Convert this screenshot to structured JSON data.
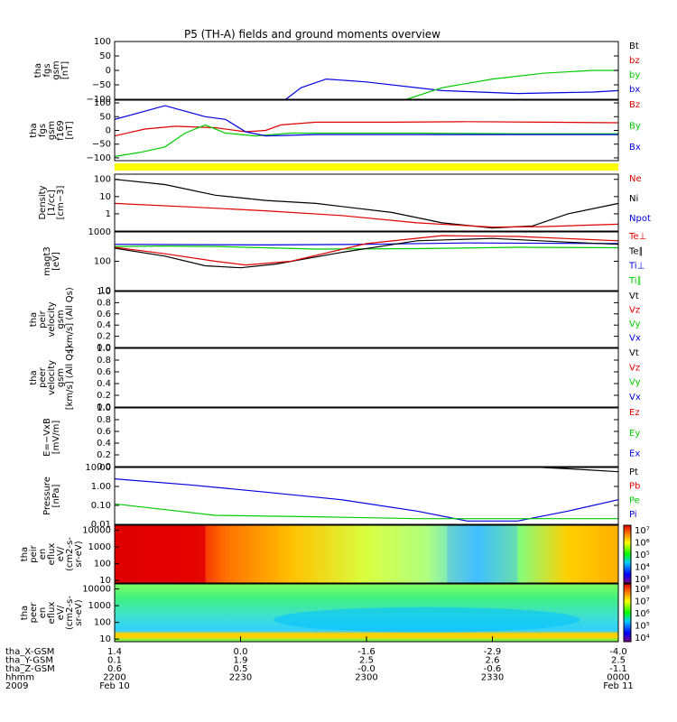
{
  "title": "P5 (TH-A) fields and ground moments overview",
  "colors": {
    "black": "#000000",
    "red": "#e00000",
    "green": "#00cc00",
    "blue": "#0000e0",
    "yellow": "#ffff00"
  },
  "chart_data": [
    {
      "type": "line",
      "id": "fgs",
      "ylabel": [
        "tha",
        "fgs",
        "gsm",
        "[nT]"
      ],
      "ylim": [
        -100,
        100
      ],
      "yticks": [
        "100",
        "50",
        "0",
        "−50",
        "−100"
      ],
      "legend": [
        {
          "name": "Bt",
          "color": "black"
        },
        {
          "name": "bz",
          "color": "red"
        },
        {
          "name": "by",
          "color": "green"
        },
        {
          "name": "bx",
          "color": "blue"
        }
      ],
      "series": [
        {
          "color": "blue",
          "points": [
            [
              0.34,
              -100
            ],
            [
              0.37,
              -60
            ],
            [
              0.42,
              -30
            ],
            [
              0.5,
              -40
            ],
            [
              0.65,
              -70
            ],
            [
              0.8,
              -80
            ],
            [
              0.95,
              -75
            ],
            [
              1.0,
              -70
            ]
          ]
        },
        {
          "color": "green",
          "points": [
            [
              0.58,
              -100
            ],
            [
              0.65,
              -60
            ],
            [
              0.75,
              -30
            ],
            [
              0.85,
              -10
            ],
            [
              0.95,
              0
            ],
            [
              1.0,
              0
            ]
          ]
        }
      ]
    },
    {
      "type": "line",
      "id": "fgs-f169",
      "ylabel": [
        "tha",
        "fgs",
        "gsm",
        "f169",
        "[nT]"
      ],
      "ylim": [
        -110,
        110
      ],
      "yticks": [
        "100",
        "50",
        "0",
        "−50",
        "−100"
      ],
      "legend": [
        {
          "name": "Bz",
          "color": "red"
        },
        {
          "name": "By",
          "color": "green"
        },
        {
          "name": "Bx",
          "color": "blue"
        }
      ],
      "series": [
        {
          "color": "red",
          "points": [
            [
              0.0,
              -20
            ],
            [
              0.06,
              5
            ],
            [
              0.12,
              15
            ],
            [
              0.2,
              10
            ],
            [
              0.26,
              -5
            ],
            [
              0.3,
              0
            ],
            [
              0.33,
              20
            ],
            [
              0.4,
              30
            ],
            [
              0.55,
              30
            ],
            [
              0.7,
              32
            ],
            [
              0.85,
              30
            ],
            [
              1.0,
              28
            ]
          ]
        },
        {
          "color": "green",
          "points": [
            [
              0.0,
              -95
            ],
            [
              0.05,
              -80
            ],
            [
              0.1,
              -60
            ],
            [
              0.14,
              -10
            ],
            [
              0.18,
              20
            ],
            [
              0.22,
              -10
            ],
            [
              0.28,
              -20
            ],
            [
              0.35,
              -10
            ],
            [
              0.45,
              -10
            ],
            [
              0.6,
              -10
            ],
            [
              0.8,
              -12
            ],
            [
              1.0,
              -12
            ]
          ]
        },
        {
          "color": "blue",
          "points": [
            [
              0.0,
              40
            ],
            [
              0.06,
              70
            ],
            [
              0.1,
              90
            ],
            [
              0.14,
              70
            ],
            [
              0.18,
              50
            ],
            [
              0.22,
              40
            ],
            [
              0.26,
              -5
            ],
            [
              0.3,
              -20
            ],
            [
              0.4,
              -15
            ],
            [
              0.6,
              -15
            ],
            [
              0.8,
              -15
            ],
            [
              1.0,
              -15
            ]
          ]
        }
      ]
    },
    {
      "type": "line",
      "id": "density",
      "ylabel": [
        "Density",
        "[1/cc]",
        "[cm−3]"
      ],
      "ylog": true,
      "ylim": [
        0.1,
        200
      ],
      "yticks": [
        "100",
        "10",
        "1"
      ],
      "legend": [
        {
          "name": "Ne",
          "color": "red"
        },
        {
          "name": "Ni",
          "color": "black"
        },
        {
          "name": "Npot",
          "color": "blue"
        }
      ],
      "series": [
        {
          "color": "black",
          "points": [
            [
              0.0,
              100
            ],
            [
              0.1,
              50
            ],
            [
              0.2,
              12
            ],
            [
              0.3,
              6
            ],
            [
              0.4,
              4
            ],
            [
              0.55,
              1.2
            ],
            [
              0.65,
              0.3
            ],
            [
              0.75,
              0.15
            ],
            [
              0.83,
              0.2
            ],
            [
              0.9,
              1.0
            ],
            [
              1.0,
              4
            ]
          ]
        },
        {
          "color": "red",
          "points": [
            [
              0.0,
              4
            ],
            [
              0.15,
              2.5
            ],
            [
              0.3,
              1.5
            ],
            [
              0.45,
              0.8
            ],
            [
              0.6,
              0.3
            ],
            [
              0.75,
              0.17
            ],
            [
              0.85,
              0.18
            ],
            [
              1.0,
              0.25
            ]
          ]
        }
      ]
    },
    {
      "type": "line",
      "id": "magt3",
      "ylabel": [
        "magt3",
        "[eV]"
      ],
      "ylog": true,
      "ylim": [
        10,
        1000
      ],
      "yticks": [
        "1000",
        "100",
        "10"
      ],
      "legend": [
        {
          "name": "Te⊥",
          "color": "red"
        },
        {
          "name": "Te∥",
          "color": "black"
        },
        {
          "name": "Ti⊥",
          "color": "blue"
        },
        {
          "name": "Ti∥",
          "color": "green"
        }
      ],
      "series": [
        {
          "color": "blue",
          "points": [
            [
              0.0,
              380
            ],
            [
              0.3,
              360
            ],
            [
              0.5,
              380
            ],
            [
              0.7,
              420
            ],
            [
              1.0,
              400
            ]
          ]
        },
        {
          "color": "green",
          "points": [
            [
              0.0,
              320
            ],
            [
              0.1,
              330
            ],
            [
              0.2,
              320
            ],
            [
              0.4,
              260
            ],
            [
              0.6,
              270
            ],
            [
              0.8,
              300
            ],
            [
              1.0,
              290
            ]
          ]
        },
        {
          "color": "black",
          "points": [
            [
              0.0,
              280
            ],
            [
              0.1,
              150
            ],
            [
              0.18,
              70
            ],
            [
              0.25,
              60
            ],
            [
              0.32,
              80
            ],
            [
              0.45,
              200
            ],
            [
              0.6,
              500
            ],
            [
              0.75,
              600
            ],
            [
              0.9,
              450
            ],
            [
              1.0,
              380
            ]
          ]
        },
        {
          "color": "red",
          "points": [
            [
              0.0,
              300
            ],
            [
              0.1,
              180
            ],
            [
              0.2,
              100
            ],
            [
              0.26,
              75
            ],
            [
              0.35,
              100
            ],
            [
              0.5,
              400
            ],
            [
              0.65,
              750
            ],
            [
              0.8,
              700
            ],
            [
              1.0,
              500
            ]
          ]
        }
      ]
    },
    {
      "type": "line",
      "id": "peir",
      "ylabel": [
        "tha",
        "peir",
        "velocity",
        "gsm",
        "[km/s] (All Qs)"
      ],
      "ylim": [
        0,
        1
      ],
      "yticks": [
        "1.0",
        "0.8",
        "0.6",
        "0.4",
        "0.2",
        "0.0"
      ],
      "legend": [
        {
          "name": "Vt",
          "color": "black"
        },
        {
          "name": "Vz",
          "color": "red"
        },
        {
          "name": "Vy",
          "color": "green"
        },
        {
          "name": "Vx",
          "color": "blue"
        }
      ],
      "series": []
    },
    {
      "type": "line",
      "id": "peer",
      "ylabel": [
        "tha",
        "peer",
        "velocity",
        "gsm",
        "[km/s] (All Qs)"
      ],
      "ylim": [
        0,
        1
      ],
      "yticks": [
        "1.0",
        "0.8",
        "0.6",
        "0.4",
        "0.2",
        "0.0"
      ],
      "legend": [
        {
          "name": "Vt",
          "color": "black"
        },
        {
          "name": "Vz",
          "color": "red"
        },
        {
          "name": "Vy",
          "color": "green"
        },
        {
          "name": "Vx",
          "color": "blue"
        }
      ],
      "series": []
    },
    {
      "type": "line",
      "id": "efield",
      "ylabel": [
        "E=−VxB",
        "[mV/m]"
      ],
      "ylim": [
        0,
        1
      ],
      "yticks": [
        "1.0",
        "0.8",
        "0.6",
        "0.4",
        "0.2",
        "0.0"
      ],
      "legend": [
        {
          "name": "Ez",
          "color": "red"
        },
        {
          "name": "Ey",
          "color": "green"
        },
        {
          "name": "Ex",
          "color": "blue"
        }
      ],
      "series": []
    },
    {
      "type": "line",
      "id": "pressure",
      "ylabel": [
        "Pressure",
        "[nPa]"
      ],
      "ylog": true,
      "ylim": [
        0.01,
        10
      ],
      "yticks": [
        "10.00",
        "1.00",
        "0.10",
        "0.01"
      ],
      "legend": [
        {
          "name": "Pt",
          "color": "black"
        },
        {
          "name": "Pb",
          "color": "red"
        },
        {
          "name": "Pe",
          "color": "green"
        },
        {
          "name": "Pi",
          "color": "blue"
        }
      ],
      "series": [
        {
          "color": "blue",
          "points": [
            [
              0.0,
              2.5
            ],
            [
              0.15,
              1.2
            ],
            [
              0.3,
              0.5
            ],
            [
              0.45,
              0.2
            ],
            [
              0.6,
              0.05
            ],
            [
              0.7,
              0.015
            ],
            [
              0.8,
              0.015
            ],
            [
              0.9,
              0.05
            ],
            [
              1.0,
              0.2
            ]
          ]
        },
        {
          "color": "green",
          "points": [
            [
              0.0,
              0.12
            ],
            [
              0.1,
              0.06
            ],
            [
              0.2,
              0.03
            ],
            [
              0.4,
              0.025
            ],
            [
              0.6,
              0.02
            ],
            [
              0.8,
              0.02
            ],
            [
              1.0,
              0.02
            ]
          ]
        },
        {
          "color": "black",
          "points": [
            [
              0.85,
              10
            ],
            [
              0.92,
              8
            ],
            [
              1.0,
              6
            ]
          ]
        }
      ]
    },
    {
      "type": "heatmap",
      "id": "peir-eflux",
      "ylabel": [
        "tha",
        "peir",
        "en",
        "eflux",
        "eV/",
        "(cm2-s-",
        "sr-eV)"
      ],
      "ylog": true,
      "yticks": [
        "10000",
        "1000",
        "100",
        "10"
      ],
      "colorbar": {
        "ticks": [
          "10⁷",
          "10⁶",
          "10⁵",
          "10⁴",
          "10³"
        ]
      }
    },
    {
      "type": "heatmap",
      "id": "peer-eflux",
      "ylabel": [
        "tha",
        "peer",
        "en",
        "eflux",
        "eV/",
        "(cm2-s-",
        "sr-eV)"
      ],
      "ylog": true,
      "yticks": [
        "10000",
        "1000",
        "100",
        "10"
      ],
      "colorbar": {
        "ticks": [
          "10⁸",
          "10⁷",
          "10⁶",
          "10⁵",
          "10⁴"
        ]
      }
    }
  ],
  "xaxis": {
    "rows": [
      {
        "label": "tha_X-GSM",
        "values": [
          "1.4",
          "0.0",
          "-1.6",
          "-2.9",
          "-4.0"
        ]
      },
      {
        "label": "tha_Y-GSM",
        "values": [
          "0.1",
          "1.9",
          "2.5",
          "2.6",
          "2.5"
        ]
      },
      {
        "label": "tha_Z-GSM",
        "values": [
          "0.6",
          "0.5",
          "-0.0",
          "-0.6",
          "-1.1"
        ]
      },
      {
        "label": "hhmm",
        "values": [
          "2200",
          "2230",
          "2300",
          "2330",
          "0000"
        ]
      },
      {
        "label": "2009",
        "values": [
          "Feb 10",
          "",
          "",
          "",
          "Feb 11"
        ]
      }
    ]
  }
}
